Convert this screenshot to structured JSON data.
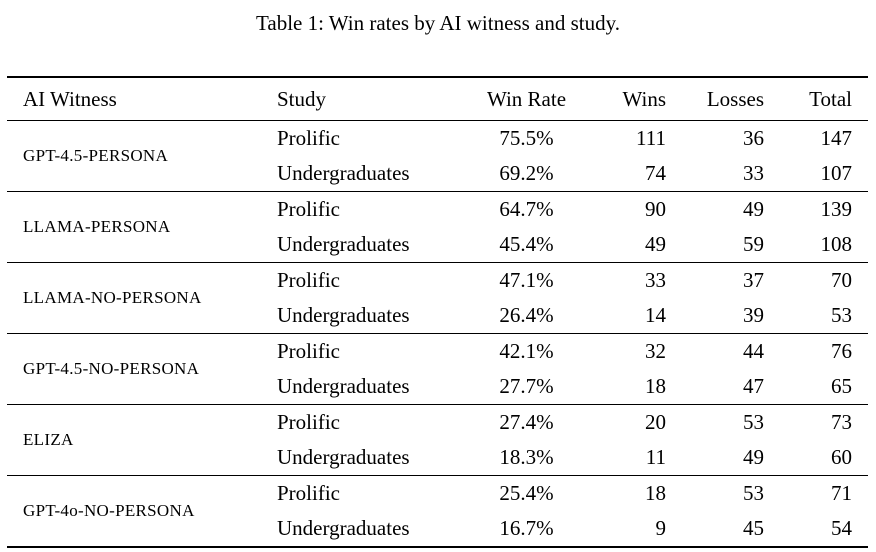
{
  "doc": {
    "caption": "Table 1: Win rates by AI witness and study."
  },
  "table": {
    "headers": [
      "AI Witness",
      "Study",
      "Win Rate",
      "Wins",
      "Losses",
      "Total"
    ],
    "groups": [
      {
        "witness": "GPT-4.5-PERSONA",
        "rows": [
          {
            "study": "Prolific",
            "win_rate": "75.5%",
            "wins": "111",
            "losses": "36",
            "total": "147"
          },
          {
            "study": "Undergraduates",
            "win_rate": "69.2%",
            "wins": "74",
            "losses": "33",
            "total": "107"
          }
        ]
      },
      {
        "witness": "LLAMA-PERSONA",
        "rows": [
          {
            "study": "Prolific",
            "win_rate": "64.7%",
            "wins": "90",
            "losses": "49",
            "total": "139"
          },
          {
            "study": "Undergraduates",
            "win_rate": "45.4%",
            "wins": "49",
            "losses": "59",
            "total": "108"
          }
        ]
      },
      {
        "witness": "LLAMA-NO-PERSONA",
        "rows": [
          {
            "study": "Prolific",
            "win_rate": "47.1%",
            "wins": "33",
            "losses": "37",
            "total": "70"
          },
          {
            "study": "Undergraduates",
            "win_rate": "26.4%",
            "wins": "14",
            "losses": "39",
            "total": "53"
          }
        ]
      },
      {
        "witness": "GPT-4.5-NO-PERSONA",
        "rows": [
          {
            "study": "Prolific",
            "win_rate": "42.1%",
            "wins": "32",
            "losses": "44",
            "total": "76"
          },
          {
            "study": "Undergraduates",
            "win_rate": "27.7%",
            "wins": "18",
            "losses": "47",
            "total": "65"
          }
        ]
      },
      {
        "witness": "ELIZA",
        "rows": [
          {
            "study": "Prolific",
            "win_rate": "27.4%",
            "wins": "20",
            "losses": "53",
            "total": "73"
          },
          {
            "study": "Undergraduates",
            "win_rate": "18.3%",
            "wins": "11",
            "losses": "49",
            "total": "60"
          }
        ]
      },
      {
        "witness": "GPT-4o-NO-PERSONA",
        "rows": [
          {
            "study": "Prolific",
            "win_rate": "25.4%",
            "wins": "18",
            "losses": "53",
            "total": "71"
          },
          {
            "study": "Undergraduates",
            "win_rate": "16.7%",
            "wins": "9",
            "losses": "45",
            "total": "54"
          }
        ]
      }
    ]
  }
}
